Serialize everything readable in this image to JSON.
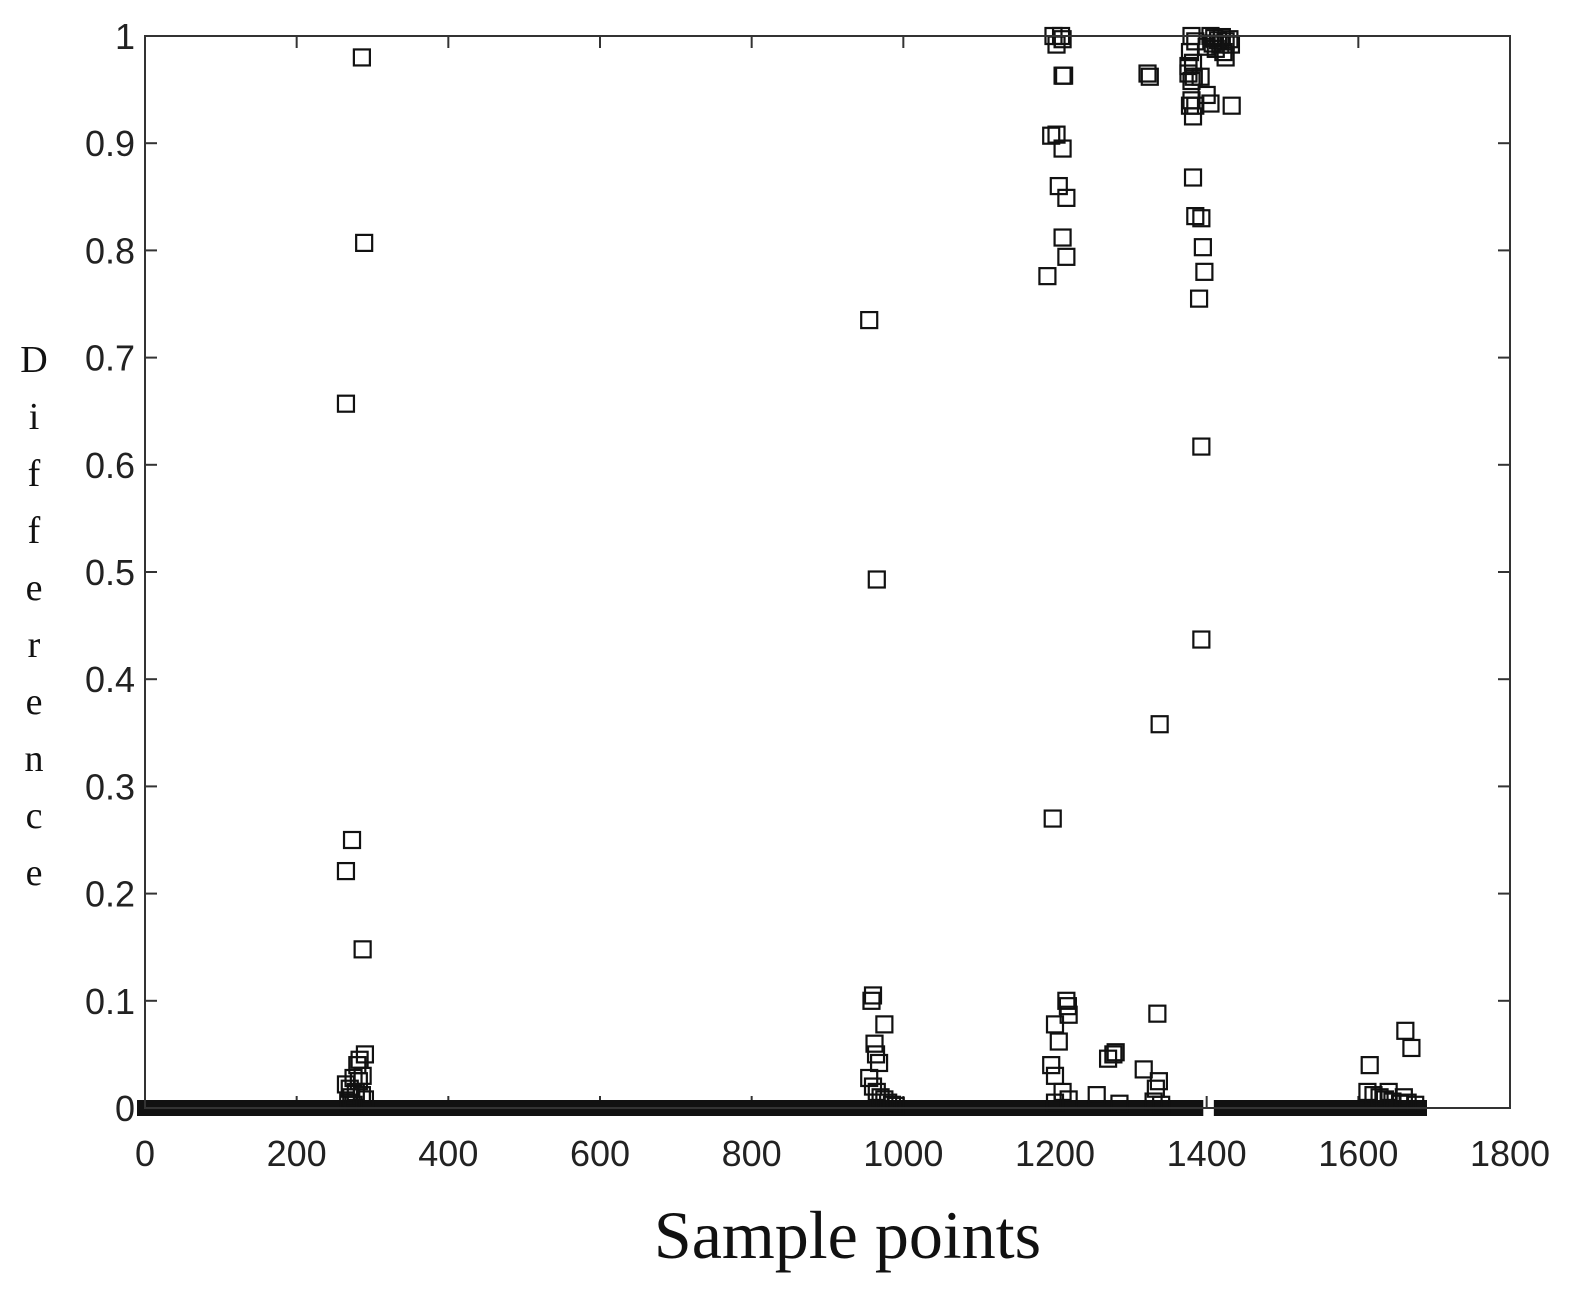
{
  "chart_data": {
    "type": "scatter",
    "title": "",
    "xlabel": "Sample points",
    "ylabel": "Difference",
    "xlim": [
      0,
      1800
    ],
    "ylim": [
      0,
      1
    ],
    "xticks": [
      "0",
      "200",
      "400",
      "600",
      "800",
      "1000",
      "1200",
      "1400",
      "1600",
      "1800"
    ],
    "yticks": [
      "0",
      "0.1",
      "0.2",
      "0.3",
      "0.4",
      "0.5",
      "0.6",
      "0.7",
      "0.8",
      "0.9",
      "1"
    ],
    "grid": false,
    "legend": "none",
    "marker": "square-open",
    "marker_color": "#111111",
    "baseline_segments": [
      [
        0,
        1385
      ],
      [
        1420,
        1680
      ]
    ],
    "baseline_value": 0,
    "series": [
      {
        "points": [
          [
            286,
            0.98
          ],
          [
            289,
            0.807
          ],
          [
            265,
            0.657
          ],
          [
            273,
            0.25
          ],
          [
            265,
            0.221
          ],
          [
            287,
            0.148
          ],
          [
            290,
            0.05
          ],
          [
            283,
            0.045
          ],
          [
            280,
            0.04
          ],
          [
            287,
            0.03
          ],
          [
            275,
            0.028
          ],
          [
            282,
            0.025
          ],
          [
            265,
            0.022
          ],
          [
            270,
            0.018
          ],
          [
            278,
            0.015
          ],
          [
            286,
            0.012
          ],
          [
            272,
            0.01
          ],
          [
            290,
            0.008
          ],
          [
            268,
            0.005
          ],
          [
            275,
            0.003
          ],
          [
            955,
            0.735
          ],
          [
            965,
            0.493
          ],
          [
            958,
            0.1
          ],
          [
            960,
            0.105
          ],
          [
            975,
            0.078
          ],
          [
            962,
            0.06
          ],
          [
            964,
            0.05
          ],
          [
            968,
            0.042
          ],
          [
            955,
            0.028
          ],
          [
            960,
            0.02
          ],
          [
            965,
            0.015
          ],
          [
            970,
            0.01
          ],
          [
            975,
            0.008
          ],
          [
            980,
            0.005
          ],
          [
            985,
            0.003
          ],
          [
            990,
            0.002
          ],
          [
            1198,
            1.0
          ],
          [
            1208,
            1.0
          ],
          [
            1202,
            0.992
          ],
          [
            1210,
            0.997
          ],
          [
            1210,
            0.963
          ],
          [
            1212,
            0.963
          ],
          [
            1195,
            0.907
          ],
          [
            1202,
            0.908
          ],
          [
            1210,
            0.895
          ],
          [
            1205,
            0.86
          ],
          [
            1215,
            0.849
          ],
          [
            1210,
            0.812
          ],
          [
            1215,
            0.794
          ],
          [
            1190,
            0.776
          ],
          [
            1197,
            0.27
          ],
          [
            1215,
            0.1
          ],
          [
            1217,
            0.095
          ],
          [
            1218,
            0.087
          ],
          [
            1200,
            0.078
          ],
          [
            1205,
            0.062
          ],
          [
            1195,
            0.04
          ],
          [
            1200,
            0.03
          ],
          [
            1210,
            0.015
          ],
          [
            1218,
            0.008
          ],
          [
            1200,
            0.005
          ],
          [
            1255,
            0.012
          ],
          [
            1270,
            0.046
          ],
          [
            1277,
            0.05
          ],
          [
            1280,
            0.052
          ],
          [
            1285,
            0.004
          ],
          [
            1322,
            0.965
          ],
          [
            1325,
            0.962
          ],
          [
            1338,
            0.358
          ],
          [
            1335,
            0.088
          ],
          [
            1317,
            0.036
          ],
          [
            1337,
            0.025
          ],
          [
            1333,
            0.018
          ],
          [
            1330,
            0.006
          ],
          [
            1340,
            0.003
          ],
          [
            1380,
            1.0
          ],
          [
            1385,
            0.995
          ],
          [
            1378,
            0.985
          ],
          [
            1382,
            0.975
          ],
          [
            1376,
            0.972
          ],
          [
            1383,
            0.962
          ],
          [
            1380,
            0.958
          ],
          [
            1392,
            0.962
          ],
          [
            1376,
            0.965
          ],
          [
            1380,
            0.94
          ],
          [
            1378,
            0.935
          ],
          [
            1382,
            0.925
          ],
          [
            1385,
            0.935
          ],
          [
            1400,
            0.945
          ],
          [
            1405,
            0.937
          ],
          [
            1382,
            0.868
          ],
          [
            1385,
            0.832
          ],
          [
            1393,
            0.83
          ],
          [
            1395,
            0.803
          ],
          [
            1397,
            0.78
          ],
          [
            1390,
            0.755
          ],
          [
            1393,
            0.617
          ],
          [
            1393,
            0.437
          ],
          [
            1405,
            1.0
          ],
          [
            1410,
            0.998
          ],
          [
            1415,
            0.996
          ],
          [
            1420,
            0.999
          ],
          [
            1425,
            0.995
          ],
          [
            1400,
            0.99
          ],
          [
            1408,
            0.993
          ],
          [
            1418,
            0.992
          ],
          [
            1422,
            0.985
          ],
          [
            1412,
            0.988
          ],
          [
            1425,
            0.98
          ],
          [
            1430,
            0.997
          ],
          [
            1432,
            0.992
          ],
          [
            1433,
            0.935
          ],
          [
            1615,
            0.04
          ],
          [
            1612,
            0.015
          ],
          [
            1620,
            0.012
          ],
          [
            1628,
            0.01
          ],
          [
            1635,
            0.008
          ],
          [
            1640,
            0.015
          ],
          [
            1645,
            0.006
          ],
          [
            1655,
            0.004
          ],
          [
            1660,
            0.01
          ],
          [
            1662,
            0.072
          ],
          [
            1670,
            0.056
          ],
          [
            1665,
            0.005
          ],
          [
            1675,
            0.003
          ]
        ]
      }
    ]
  }
}
